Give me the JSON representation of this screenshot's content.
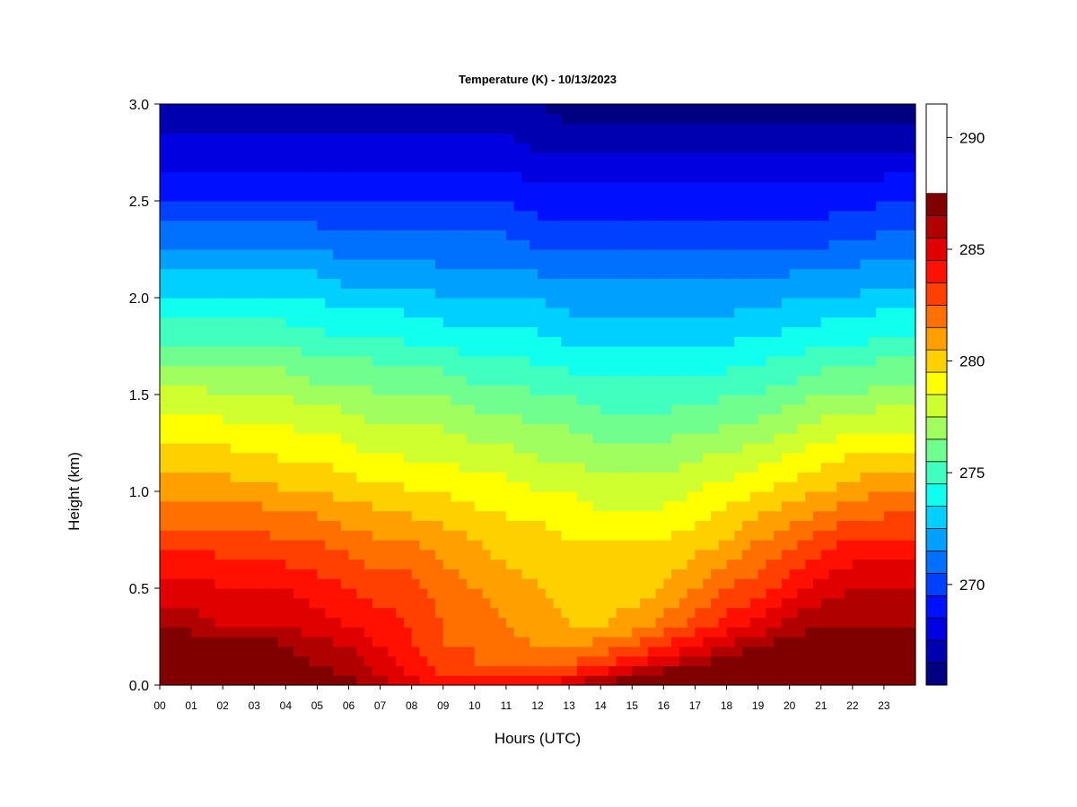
{
  "chart_data": {
    "type": "heatmap",
    "title": "Temperature (K) - 10/13/2023",
    "xlabel": "Hours (UTC)",
    "ylabel": "Height (km)",
    "xlim": [
      0,
      24
    ],
    "ylim": [
      0,
      3.0
    ],
    "x_ticks": [
      0,
      1,
      2,
      3,
      4,
      5,
      6,
      7,
      8,
      9,
      10,
      11,
      12,
      13,
      14,
      15,
      16,
      17,
      18,
      19,
      20,
      21,
      22,
      23
    ],
    "x_tick_labels": [
      "00",
      "01",
      "02",
      "03",
      "04",
      "05",
      "06",
      "07",
      "08",
      "09",
      "10",
      "11",
      "12",
      "13",
      "14",
      "15",
      "16",
      "17",
      "18",
      "19",
      "20",
      "21",
      "22",
      "23"
    ],
    "y_ticks": [
      0.0,
      0.5,
      1.0,
      1.5,
      2.0,
      2.5,
      3.0
    ],
    "y_tick_labels": [
      "0.0",
      "0.5",
      "1.0",
      "1.5",
      "2.0",
      "2.5",
      "3.0"
    ],
    "colorbar": {
      "min": 266,
      "max": 292,
      "step": 1,
      "ticks": [
        270,
        275,
        280,
        285,
        290
      ],
      "tick_labels": [
        "270",
        "275",
        "280",
        "285",
        "290"
      ],
      "colors": [
        "#000080",
        "#0000b0",
        "#0000e0",
        "#0010ff",
        "#0040ff",
        "#0070ff",
        "#00a0ff",
        "#00d0ff",
        "#10ffef",
        "#40ffbf",
        "#70ff8f",
        "#a0ff5f",
        "#d0ff2f",
        "#ffff00",
        "#ffd000",
        "#ffa000",
        "#ff7000",
        "#ff4000",
        "#ff1000",
        "#e00000",
        "#b00000",
        "#800000"
      ]
    },
    "hours": [
      0,
      1,
      2,
      3,
      4,
      5,
      6,
      7,
      8,
      9,
      10,
      11,
      12,
      13,
      14,
      15,
      16,
      17,
      18,
      19,
      20,
      21,
      22,
      23,
      24
    ],
    "heights_km": [
      0.0,
      0.05,
      0.1,
      0.2,
      0.3,
      0.5,
      0.75,
      1.0,
      1.25,
      1.5,
      1.75,
      2.0,
      2.25,
      2.5,
      2.75,
      3.0
    ],
    "values_K": [
      [
        291.5,
        290.0,
        289.5,
        288.5,
        286.5,
        285.5,
        283.5,
        281.5,
        280.0,
        278.5,
        276.0,
        274.0,
        272.0,
        270.0,
        268.5,
        267.0
      ],
      [
        291.5,
        290.0,
        289.5,
        288.5,
        286.5,
        285.5,
        283.5,
        281.5,
        280.0,
        278.5,
        276.0,
        274.0,
        272.0,
        270.0,
        268.5,
        267.0
      ],
      [
        290.5,
        289.5,
        288.5,
        288.5,
        286.0,
        285.0,
        283.5,
        281.5,
        280.0,
        278.0,
        276.0,
        274.0,
        272.0,
        270.0,
        268.5,
        267.0
      ],
      [
        289.5,
        289.0,
        288.5,
        288.0,
        286.0,
        285.0,
        283.5,
        281.5,
        279.5,
        278.0,
        276.0,
        274.0,
        272.0,
        270.0,
        268.5,
        267.0
      ],
      [
        288.5,
        288.0,
        287.5,
        287.0,
        286.0,
        285.0,
        283.0,
        281.0,
        279.5,
        278.0,
        276.0,
        274.0,
        272.0,
        270.0,
        268.5,
        267.0
      ],
      [
        288.0,
        287.5,
        287.0,
        286.5,
        285.5,
        284.5,
        283.0,
        281.0,
        279.5,
        277.5,
        275.5,
        274.0,
        272.0,
        270.0,
        268.5,
        267.0
      ],
      [
        287.5,
        287.0,
        286.5,
        286.0,
        285.0,
        284.0,
        282.5,
        280.5,
        279.0,
        277.5,
        275.5,
        273.5,
        271.5,
        270.0,
        268.5,
        267.0
      ],
      [
        286.5,
        286.0,
        285.5,
        285.0,
        284.5,
        283.5,
        282.0,
        280.5,
        278.5,
        277.0,
        275.5,
        273.5,
        271.5,
        270.0,
        268.5,
        267.0
      ],
      [
        285.5,
        285.0,
        284.5,
        284.0,
        284.0,
        283.5,
        282.0,
        280.0,
        278.5,
        277.0,
        275.0,
        273.5,
        271.5,
        270.0,
        268.5,
        267.0
      ],
      [
        285.0,
        284.0,
        283.5,
        283.0,
        283.0,
        282.5,
        281.5,
        280.0,
        278.5,
        277.0,
        275.0,
        273.0,
        271.5,
        270.0,
        268.5,
        267.0
      ],
      [
        285.0,
        284.0,
        283.0,
        283.0,
        282.5,
        282.0,
        281.0,
        279.5,
        278.0,
        276.5,
        274.5,
        273.0,
        271.5,
        270.0,
        268.5,
        267.0
      ],
      [
        285.0,
        283.5,
        282.5,
        282.5,
        282.0,
        281.5,
        280.5,
        279.5,
        278.0,
        276.5,
        274.5,
        273.0,
        271.5,
        270.0,
        268.5,
        267.0
      ],
      [
        285.5,
        283.5,
        282.5,
        282.0,
        281.5,
        281.0,
        280.5,
        279.0,
        277.5,
        276.0,
        274.5,
        273.0,
        271.0,
        269.5,
        268.0,
        267.0
      ],
      [
        286.0,
        284.5,
        283.0,
        282.0,
        281.0,
        280.5,
        280.0,
        279.0,
        277.5,
        276.0,
        274.0,
        272.5,
        271.0,
        269.5,
        268.0,
        266.5
      ],
      [
        287.5,
        285.5,
        284.0,
        282.5,
        281.0,
        280.5,
        280.0,
        278.5,
        277.0,
        275.5,
        274.0,
        272.5,
        271.0,
        269.5,
        268.0,
        266.5
      ],
      [
        288.5,
        287.0,
        285.0,
        283.0,
        281.5,
        280.5,
        280.0,
        278.5,
        277.0,
        275.5,
        274.0,
        272.5,
        271.0,
        269.5,
        268.0,
        266.5
      ],
      [
        289.5,
        288.0,
        286.0,
        284.0,
        282.5,
        281.0,
        280.0,
        278.5,
        277.0,
        275.5,
        274.0,
        272.5,
        271.0,
        269.5,
        268.0,
        266.5
      ],
      [
        290.0,
        288.5,
        287.0,
        285.0,
        283.5,
        282.0,
        280.5,
        279.0,
        277.5,
        275.5,
        274.0,
        272.5,
        271.0,
        269.5,
        268.0,
        266.5
      ],
      [
        290.5,
        289.5,
        288.0,
        286.0,
        284.5,
        283.0,
        281.0,
        279.5,
        277.5,
        276.0,
        274.0,
        272.5,
        271.0,
        269.5,
        268.0,
        266.5
      ],
      [
        291.0,
        290.0,
        288.5,
        287.0,
        285.5,
        283.5,
        282.0,
        280.0,
        278.0,
        276.0,
        274.5,
        272.5,
        271.0,
        269.5,
        268.0,
        266.5
      ],
      [
        291.0,
        290.5,
        289.0,
        287.5,
        286.5,
        284.5,
        282.5,
        280.5,
        278.5,
        276.5,
        274.5,
        273.0,
        271.0,
        269.5,
        268.0,
        266.5
      ],
      [
        290.5,
        290.0,
        289.0,
        288.0,
        287.0,
        285.5,
        283.5,
        281.0,
        279.0,
        277.0,
        275.0,
        273.0,
        271.0,
        269.5,
        268.0,
        266.5
      ],
      [
        290.0,
        289.5,
        289.0,
        288.0,
        287.0,
        286.0,
        284.0,
        281.5,
        279.5,
        277.0,
        275.0,
        273.0,
        271.5,
        269.5,
        268.0,
        266.5
      ],
      [
        289.5,
        289.0,
        288.5,
        288.0,
        287.0,
        286.0,
        284.0,
        282.0,
        279.5,
        277.5,
        275.5,
        273.5,
        271.5,
        270.0,
        268.0,
        266.5
      ],
      [
        289.5,
        289.0,
        288.5,
        288.0,
        287.0,
        286.0,
        284.0,
        282.0,
        279.5,
        277.5,
        275.5,
        273.5,
        271.5,
        270.0,
        268.0,
        266.5
      ]
    ]
  }
}
